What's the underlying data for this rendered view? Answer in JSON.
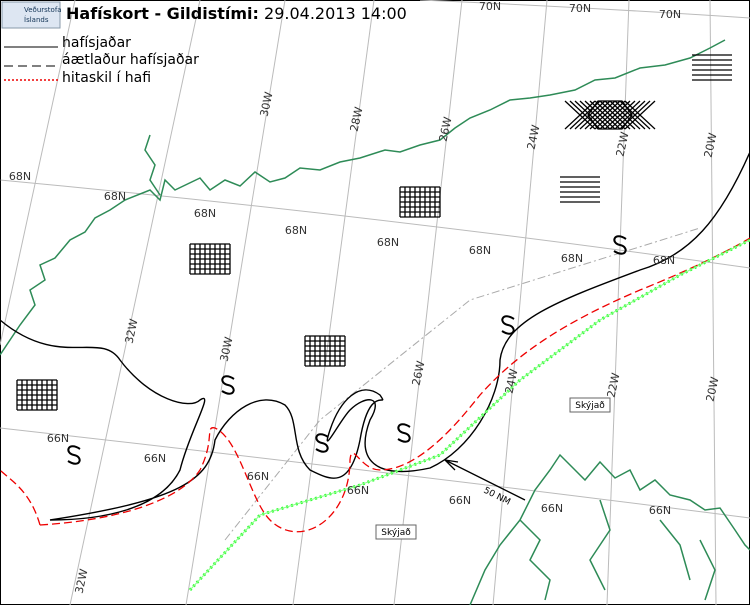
{
  "header": {
    "logo": [
      "Veðurstofa",
      "Íslands"
    ],
    "title": "Hafískort - Gildistími: 29.04.2013 14:00"
  },
  "legend": [
    "hafísjaðar",
    "áætlaður hafísjaðar",
    "hitaskil í hafi"
  ],
  "grid_labels": {
    "latitude": [
      "70N",
      "70N",
      "70N",
      "68N",
      "68N",
      "68N",
      "68N",
      "68N",
      "68N",
      "68N",
      "68N",
      "66N",
      "66N",
      "66N",
      "66N",
      "66N",
      "66N",
      "66N"
    ],
    "longitude": [
      "30W",
      "28W",
      "26W",
      "24W",
      "22W",
      "20W",
      "32W",
      "30W",
      "26W",
      "24W",
      "22W",
      "20W",
      "32W"
    ]
  },
  "annotations": [
    "Skýjað",
    "Skýjað",
    "50 NM"
  ]
}
